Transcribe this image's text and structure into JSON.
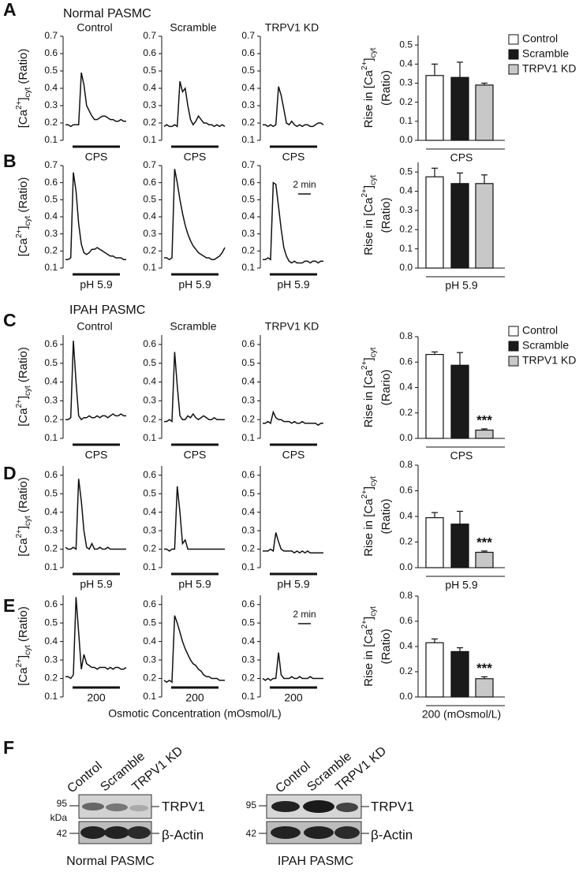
{
  "figure": {
    "panels": [
      "A",
      "B",
      "C",
      "D",
      "E",
      "F"
    ],
    "groups": [
      "Normal PASMC",
      "IPAH PASMC"
    ],
    "x_title": "Osmotic Concentration (mOsmol/L)"
  },
  "chart_data": [
    {
      "type": "line",
      "title": "Control",
      "x_label": "CPS",
      "color": "#111111",
      "ylim": [
        0.1,
        0.7
      ],
      "yticks": [
        0.1,
        0.2,
        0.3,
        0.4,
        0.5,
        0.6,
        0.7
      ],
      "y_label": {
        "pre": "[Ca",
        "sup": "2+",
        "mid": "]",
        "sub": "cyt",
        "post": "(Ratio)"
      },
      "values": [
        0.19,
        0.19,
        0.18,
        0.19,
        0.19,
        0.19,
        0.49,
        0.42,
        0.3,
        0.27,
        0.24,
        0.22,
        0.22,
        0.23,
        0.24,
        0.24,
        0.23,
        0.22,
        0.22,
        0.21,
        0.21,
        0.22,
        0.21,
        0.21
      ]
    },
    {
      "type": "line",
      "title": "Scramble",
      "x_label": "CPS",
      "color": "#111111",
      "ylim": [
        0.1,
        0.7
      ],
      "yticks": [
        0.1,
        0.2,
        0.3,
        0.4,
        0.5,
        0.6,
        0.7
      ],
      "values": [
        0.18,
        0.19,
        0.18,
        0.18,
        0.19,
        0.18,
        0.44,
        0.38,
        0.4,
        0.3,
        0.22,
        0.19,
        0.21,
        0.24,
        0.22,
        0.2,
        0.2,
        0.19,
        0.19,
        0.18,
        0.19,
        0.18,
        0.19,
        0.18
      ]
    },
    {
      "type": "line",
      "title": "TRPV1 KD",
      "x_label": "CPS",
      "color": "#111111",
      "ylim": [
        0.1,
        0.7
      ],
      "yticks": [
        0.1,
        0.2,
        0.3,
        0.4,
        0.5,
        0.6,
        0.7
      ],
      "values": [
        0.19,
        0.19,
        0.18,
        0.19,
        0.18,
        0.19,
        0.41,
        0.36,
        0.28,
        0.2,
        0.19,
        0.21,
        0.19,
        0.18,
        0.19,
        0.18,
        0.19,
        0.19,
        0.18,
        0.18,
        0.19,
        0.2,
        0.2,
        0.19
      ]
    },
    {
      "type": "bar",
      "x_label": "CPS",
      "ylim": [
        0,
        0.55
      ],
      "yticks": [
        {
          "value": 0,
          "label": "0.0"
        },
        0.1,
        0.2,
        0.3,
        0.4,
        0.5
      ],
      "legend": true,
      "y_label": {
        "pre": "Rise in [Ca",
        "sup": "2+",
        "mid": "]",
        "sub": "cyt",
        "post": "(Ratio)"
      },
      "series": [
        {
          "name": "Control",
          "color": "#ffffff",
          "values": [
            0.34
          ],
          "errors": [
            0.06
          ]
        },
        {
          "name": "Scramble",
          "color": "#1a1a1a",
          "values": [
            0.33
          ],
          "errors": [
            0.08
          ]
        },
        {
          "name": "TRPV1 KD",
          "color": "#c8c8c8",
          "values": [
            0.29
          ],
          "errors": [
            0.01
          ]
        }
      ]
    },
    {
      "type": "line",
      "x_label": "pH 5.9",
      "color": "#111111",
      "ylim": [
        0.1,
        0.7
      ],
      "yticks": [
        0.1,
        0.2,
        0.3,
        0.4,
        0.5,
        0.6,
        0.7
      ],
      "y_label": {
        "pre": "[Ca",
        "sup": "2+",
        "mid": "]",
        "sub": "cyt",
        "post": "(Ratio)"
      },
      "values": [
        0.15,
        0.15,
        0.16,
        0.66,
        0.55,
        0.36,
        0.24,
        0.19,
        0.18,
        0.19,
        0.21,
        0.21,
        0.22,
        0.21,
        0.2,
        0.19,
        0.18,
        0.17,
        0.17,
        0.16,
        0.16,
        0.16,
        0.15,
        0.15
      ]
    },
    {
      "type": "line",
      "x_label": "pH 5.9",
      "color": "#111111",
      "ylim": [
        0.1,
        0.7
      ],
      "yticks": [
        0.1,
        0.2,
        0.3,
        0.4,
        0.5,
        0.6,
        0.7
      ],
      "values": [
        0.16,
        0.16,
        0.15,
        0.16,
        0.68,
        0.6,
        0.5,
        0.42,
        0.35,
        0.3,
        0.26,
        0.23,
        0.21,
        0.19,
        0.18,
        0.17,
        0.16,
        0.16,
        0.15,
        0.15,
        0.16,
        0.17,
        0.19,
        0.22
      ]
    },
    {
      "type": "line",
      "x_label": "pH 5.9",
      "scale_bar": "2 min",
      "color": "#111111",
      "ylim": [
        0.1,
        0.7
      ],
      "yticks": [
        0.1,
        0.2,
        0.3,
        0.4,
        0.5,
        0.6,
        0.7
      ],
      "values": [
        0.15,
        0.15,
        0.16,
        0.15,
        0.6,
        0.59,
        0.46,
        0.33,
        0.22,
        0.17,
        0.14,
        0.13,
        0.14,
        0.13,
        0.13,
        0.13,
        0.14,
        0.14,
        0.13,
        0.14,
        0.14,
        0.13,
        0.14,
        0.14
      ]
    },
    {
      "type": "bar",
      "x_label": "pH 5.9",
      "ylim": [
        0,
        0.55
      ],
      "yticks": [
        {
          "value": 0,
          "label": "0.0"
        },
        0.1,
        0.2,
        0.3,
        0.4,
        0.5
      ],
      "y_label": {
        "pre": "Rise in [Ca",
        "sup": "2+",
        "mid": "]",
        "sub": "cyt",
        "post": "(Ratio)"
      },
      "series": [
        {
          "color": "#ffffff",
          "values": [
            0.475
          ],
          "errors": [
            0.045
          ]
        },
        {
          "color": "#1a1a1a",
          "values": [
            0.44
          ],
          "errors": [
            0.055
          ]
        },
        {
          "color": "#c8c8c8",
          "values": [
            0.44
          ],
          "errors": [
            0.045
          ]
        }
      ]
    },
    {
      "type": "line",
      "title": "Control",
      "x_label": "CPS",
      "color": "#111111",
      "ylim": [
        0.1,
        0.65
      ],
      "yticks": [
        0.1,
        0.2,
        0.3,
        0.4,
        0.5,
        0.6
      ],
      "y_label": {
        "pre": "[Ca",
        "sup": "2+",
        "mid": "]",
        "sub": "cyt",
        "post": "(Ratio)"
      },
      "values": [
        0.2,
        0.2,
        0.21,
        0.62,
        0.4,
        0.22,
        0.2,
        0.21,
        0.21,
        0.22,
        0.21,
        0.21,
        0.22,
        0.21,
        0.22,
        0.22,
        0.21,
        0.22,
        0.23,
        0.22,
        0.22,
        0.23,
        0.22,
        0.22
      ]
    },
    {
      "type": "line",
      "title": "Scramble",
      "x_label": "CPS",
      "color": "#111111",
      "ylim": [
        0.1,
        0.65
      ],
      "yticks": [
        0.1,
        0.2,
        0.3,
        0.4,
        0.5,
        0.6
      ],
      "values": [
        0.19,
        0.19,
        0.2,
        0.19,
        0.56,
        0.38,
        0.22,
        0.2,
        0.2,
        0.22,
        0.21,
        0.23,
        0.21,
        0.2,
        0.21,
        0.22,
        0.21,
        0.2,
        0.2,
        0.21,
        0.2,
        0.2,
        0.2,
        0.2
      ]
    },
    {
      "type": "line",
      "title": "TRPV1 KD",
      "x_label": "CPS",
      "color": "#111111",
      "ylim": [
        0.1,
        0.65
      ],
      "yticks": [
        0.1,
        0.2,
        0.3,
        0.4,
        0.5,
        0.6
      ],
      "values": [
        0.18,
        0.18,
        0.19,
        0.18,
        0.24,
        0.21,
        0.2,
        0.2,
        0.19,
        0.19,
        0.19,
        0.18,
        0.19,
        0.18,
        0.18,
        0.19,
        0.18,
        0.18,
        0.18,
        0.18,
        0.18,
        0.17,
        0.18,
        0.18
      ]
    },
    {
      "type": "bar",
      "x_label": "CPS",
      "ylim": [
        0,
        0.8
      ],
      "yticks": [
        {
          "value": 0,
          "label": "0.0"
        },
        0.2,
        0.4,
        0.6,
        0.8
      ],
      "legend": true,
      "y_label": {
        "pre": "Rise in [Ca",
        "sup": "2+",
        "mid": "]",
        "sub": "cyt",
        "post": "(Rario)"
      },
      "series": [
        {
          "name": "Control",
          "color": "#ffffff",
          "values": [
            0.66
          ],
          "errors": [
            0.02
          ]
        },
        {
          "name": "Scramble",
          "color": "#1a1a1a",
          "values": [
            0.575
          ],
          "errors": [
            0.1
          ]
        },
        {
          "name": "TRPV1 KD",
          "color": "#c8c8c8",
          "values": [
            0.065
          ],
          "errors": [
            0.01
          ],
          "annotation": "***"
        }
      ]
    },
    {
      "type": "line",
      "x_label": "pH 5.9",
      "color": "#111111",
      "ylim": [
        0.1,
        0.65
      ],
      "yticks": [
        0.1,
        0.2,
        0.3,
        0.4,
        0.5,
        0.6
      ],
      "y_label": {
        "pre": "[Ca",
        "sup": "2+",
        "mid": "]",
        "sub": "cyt",
        "post": "(Ratio)"
      },
      "values": [
        0.21,
        0.2,
        0.2,
        0.21,
        0.2,
        0.58,
        0.46,
        0.3,
        0.21,
        0.2,
        0.23,
        0.2,
        0.2,
        0.21,
        0.2,
        0.2,
        0.21,
        0.2,
        0.2,
        0.2,
        0.2,
        0.2,
        0.2,
        0.2
      ]
    },
    {
      "type": "line",
      "x_label": "pH 5.9",
      "color": "#111111",
      "ylim": [
        0.1,
        0.65
      ],
      "yticks": [
        0.1,
        0.2,
        0.3,
        0.4,
        0.5,
        0.6
      ],
      "values": [
        0.2,
        0.2,
        0.19,
        0.2,
        0.2,
        0.54,
        0.4,
        0.23,
        0.25,
        0.2,
        0.2,
        0.2,
        0.2,
        0.2,
        0.2,
        0.2,
        0.2,
        0.2,
        0.2,
        0.2,
        0.2,
        0.2,
        0.2,
        0.2
      ]
    },
    {
      "type": "line",
      "x_label": "pH 5.9",
      "color": "#111111",
      "ylim": [
        0.1,
        0.65
      ],
      "yticks": [
        0.1,
        0.2,
        0.3,
        0.4,
        0.5,
        0.6
      ],
      "values": [
        0.19,
        0.19,
        0.19,
        0.2,
        0.19,
        0.29,
        0.24,
        0.2,
        0.19,
        0.19,
        0.19,
        0.19,
        0.18,
        0.19,
        0.18,
        0.19,
        0.18,
        0.19,
        0.18,
        0.18,
        0.18,
        0.18,
        0.18,
        0.18
      ]
    },
    {
      "type": "bar",
      "x_label": "pH 5.9",
      "ylim": [
        0,
        0.8
      ],
      "yticks": [
        {
          "value": 0,
          "label": "0.0"
        },
        0.2,
        0.4,
        0.6,
        0.8
      ],
      "y_label": {
        "pre": "Rise in [Ca",
        "sup": "2+",
        "mid": "]",
        "sub": "cyt",
        "post": "(Ratio)"
      },
      "series": [
        {
          "color": "#ffffff",
          "values": [
            0.39
          ],
          "errors": [
            0.04
          ]
        },
        {
          "color": "#1a1a1a",
          "values": [
            0.34
          ],
          "errors": [
            0.1
          ]
        },
        {
          "color": "#c8c8c8",
          "values": [
            0.12
          ],
          "errors": [
            0.01
          ],
          "annotation": "***"
        }
      ]
    },
    {
      "type": "line",
      "x_label": "200",
      "color": "#111111",
      "ylim": [
        0.1,
        0.65
      ],
      "yticks": [
        0.1,
        0.2,
        0.3,
        0.4,
        0.5,
        0.6
      ],
      "y_label": {
        "pre": "[Ca",
        "sup": "2+",
        "mid": "]",
        "sub": "cyt",
        "post": "(Ratio)"
      },
      "values": [
        0.21,
        0.21,
        0.2,
        0.22,
        0.64,
        0.45,
        0.25,
        0.33,
        0.28,
        0.27,
        0.26,
        0.26,
        0.25,
        0.26,
        0.26,
        0.26,
        0.25,
        0.26,
        0.25,
        0.26,
        0.26,
        0.25,
        0.25,
        0.26
      ]
    },
    {
      "type": "line",
      "x_label": "200",
      "color": "#111111",
      "ylim": [
        0.1,
        0.65
      ],
      "yticks": [
        0.1,
        0.2,
        0.3,
        0.4,
        0.5,
        0.6
      ],
      "values": [
        0.19,
        0.18,
        0.19,
        0.18,
        0.54,
        0.5,
        0.45,
        0.4,
        0.36,
        0.33,
        0.3,
        0.28,
        0.27,
        0.25,
        0.24,
        0.22,
        0.21,
        0.21,
        0.2,
        0.2,
        0.2,
        0.19,
        0.19,
        0.19
      ]
    },
    {
      "type": "line",
      "x_label": "200",
      "scale_bar": "2 min",
      "color": "#111111",
      "ylim": [
        0.1,
        0.65
      ],
      "yticks": [
        0.1,
        0.2,
        0.3,
        0.4,
        0.5,
        0.6
      ],
      "values": [
        0.2,
        0.19,
        0.2,
        0.19,
        0.2,
        0.2,
        0.34,
        0.22,
        0.2,
        0.2,
        0.2,
        0.21,
        0.2,
        0.2,
        0.21,
        0.2,
        0.2,
        0.2,
        0.21,
        0.2,
        0.2,
        0.2,
        0.2,
        0.2
      ]
    },
    {
      "type": "bar",
      "x_label": "200 (mOsmol/L)",
      "ylim": [
        0,
        0.8
      ],
      "yticks": [
        {
          "value": 0,
          "label": "0.0"
        },
        0.2,
        0.4,
        0.6,
        0.8
      ],
      "y_label": {
        "pre": "Rise in [Ca",
        "sup": "2+",
        "mid": "]",
        "sub": "cyt",
        "post": "(Ratio)"
      },
      "series": [
        {
          "color": "#ffffff",
          "values": [
            0.43
          ],
          "errors": [
            0.03
          ]
        },
        {
          "color": "#1a1a1a",
          "values": [
            0.36
          ],
          "errors": [
            0.03
          ]
        },
        {
          "color": "#c8c8c8",
          "values": [
            0.145
          ],
          "errors": [
            0.015
          ],
          "annotation": "***"
        }
      ]
    }
  ],
  "blots": [
    {
      "title": "Normal PASMC",
      "lanes": [
        "Control",
        "Scramble",
        "TRPV1 KD"
      ],
      "markers": [
        "95",
        "kDa",
        "42"
      ],
      "bands": [
        "TRPV1",
        "β-Actin"
      ]
    },
    {
      "title": "IPAH PASMC",
      "lanes": [
        "Control",
        "Scramble",
        "TRPV1 KD"
      ],
      "markers": [
        "95",
        "42"
      ],
      "bands": [
        "TRPV1",
        "β-Actin"
      ]
    }
  ]
}
